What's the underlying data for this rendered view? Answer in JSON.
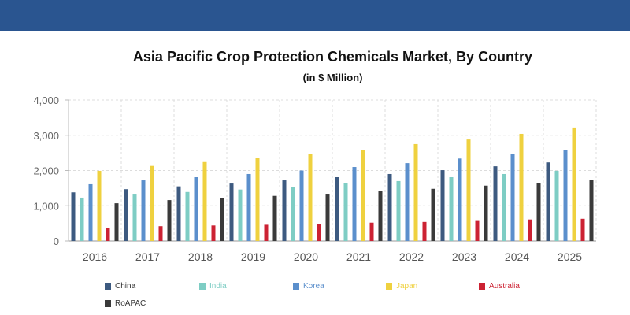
{
  "chart_data": {
    "type": "bar",
    "title": "Asia Pacific Crop Protection Chemicals Market, By Country",
    "subtitle": "(in $ Million)",
    "xlabel": "",
    "ylabel": "",
    "ylim": [
      0,
      4000
    ],
    "yticks": [
      0,
      1000,
      2000,
      3000,
      4000
    ],
    "ytick_labels": [
      "0",
      "1,000",
      "2,000",
      "3,000",
      "4,000"
    ],
    "grid": true,
    "legend_position": "bottom",
    "categories": [
      "2016",
      "2017",
      "2018",
      "2019",
      "2020",
      "2021",
      "2022",
      "2023",
      "2024",
      "2025"
    ],
    "series": [
      {
        "name": "China",
        "color": "#3d5a80",
        "values": [
          1380,
          1470,
          1550,
          1630,
          1720,
          1810,
          1900,
          2010,
          2120,
          2230
        ]
      },
      {
        "name": "India",
        "color": "#7ecdc4",
        "values": [
          1230,
          1340,
          1390,
          1460,
          1540,
          1640,
          1700,
          1810,
          1900,
          1990
        ]
      },
      {
        "name": "Korea",
        "color": "#5b8fcc",
        "values": [
          1610,
          1720,
          1810,
          1900,
          2000,
          2100,
          2210,
          2340,
          2460,
          2590
        ]
      },
      {
        "name": "Japan",
        "color": "#efd13f",
        "values": [
          1990,
          2130,
          2240,
          2350,
          2480,
          2590,
          2750,
          2880,
          3040,
          3220
        ]
      },
      {
        "name": "Australia",
        "color": "#cc2233",
        "values": [
          380,
          420,
          440,
          460,
          490,
          520,
          540,
          590,
          610,
          630
        ]
      },
      {
        "name": "RoAPAC",
        "color": "#3a3a3a",
        "values": [
          1070,
          1160,
          1210,
          1280,
          1340,
          1410,
          1480,
          1570,
          1650,
          1740
        ]
      }
    ]
  }
}
